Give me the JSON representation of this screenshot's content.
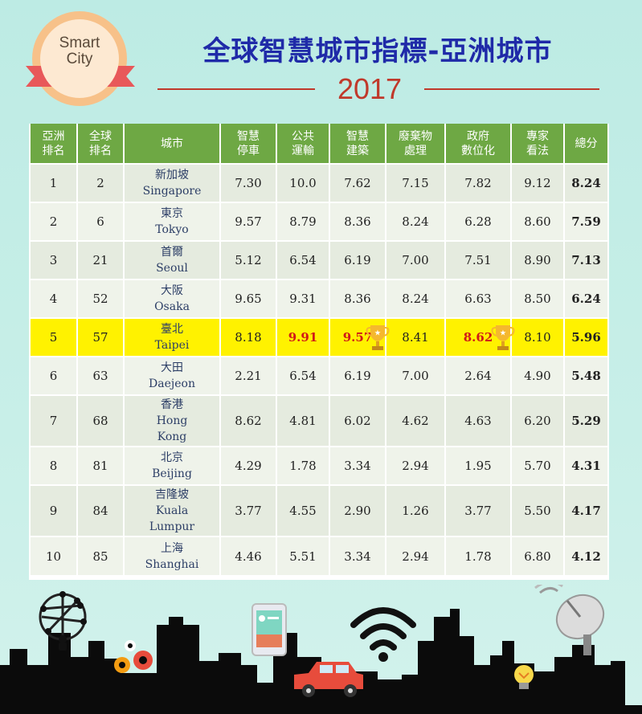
{
  "logo": {
    "line1": "Smart",
    "line2": "City"
  },
  "title": "全球智慧城市指標-亞洲城市",
  "year": "2017",
  "headers": [
    "亞洲\n排名",
    "全球\n排名",
    "城市",
    "智慧\n停車",
    "公共\n運輸",
    "智慧\n建築",
    "廢棄物\n處理",
    "政府\n數位化",
    "專家\n看法",
    "總分"
  ],
  "rows": [
    {
      "asia": "1",
      "global": "2",
      "zh": "新加坡",
      "en": "Singapore",
      "parking": "7.30",
      "transit": "10.0",
      "building": "7.62",
      "waste": "7.15",
      "gov": "7.82",
      "expert": "9.12",
      "total": "8.24"
    },
    {
      "asia": "2",
      "global": "6",
      "zh": "東京",
      "en": "Tokyo",
      "parking": "9.57",
      "transit": "8.79",
      "building": "8.36",
      "waste": "8.24",
      "gov": "6.28",
      "expert": "8.60",
      "total": "7.59"
    },
    {
      "asia": "3",
      "global": "21",
      "zh": "首爾",
      "en": "Seoul",
      "parking": "5.12",
      "transit": "6.54",
      "building": "6.19",
      "waste": "7.00",
      "gov": "7.51",
      "expert": "8.90",
      "total": "7.13"
    },
    {
      "asia": "4",
      "global": "52",
      "zh": "大阪",
      "en": "Osaka",
      "parking": "9.65",
      "transit": "9.31",
      "building": "8.36",
      "waste": "8.24",
      "gov": "6.63",
      "expert": "8.50",
      "total": "6.24"
    },
    {
      "asia": "5",
      "global": "57",
      "zh": "臺北",
      "en": "Taipei",
      "parking": "8.18",
      "transit": "9.91",
      "building": "9.57",
      "waste": "8.41",
      "gov": "8.62",
      "expert": "8.10",
      "total": "5.96"
    },
    {
      "asia": "6",
      "global": "63",
      "zh": "大田",
      "en": "Daejeon",
      "parking": "2.21",
      "transit": "6.54",
      "building": "6.19",
      "waste": "7.00",
      "gov": "2.64",
      "expert": "4.90",
      "total": "5.48"
    },
    {
      "asia": "7",
      "global": "68",
      "zh": "香港",
      "en": "Hong\nKong",
      "parking": "8.62",
      "transit": "4.81",
      "building": "6.02",
      "waste": "4.62",
      "gov": "4.63",
      "expert": "6.20",
      "total": "5.29"
    },
    {
      "asia": "8",
      "global": "81",
      "zh": "北京",
      "en": "Beijing",
      "parking": "4.29",
      "transit": "1.78",
      "building": "3.34",
      "waste": "2.94",
      "gov": "1.95",
      "expert": "5.70",
      "total": "4.31"
    },
    {
      "asia": "9",
      "global": "84",
      "zh": "吉隆坡",
      "en": "Kuala\nLumpur",
      "parking": "3.77",
      "transit": "4.55",
      "building": "2.90",
      "waste": "1.26",
      "gov": "3.77",
      "expert": "5.50",
      "total": "4.17"
    },
    {
      "asia": "10",
      "global": "85",
      "zh": "上海",
      "en": "Shanghai",
      "parking": "4.46",
      "transit": "5.51",
      "building": "3.34",
      "waste": "2.94",
      "gov": "1.78",
      "expert": "6.80",
      "total": "4.12"
    }
  ],
  "highlight_row": 4,
  "colors": {
    "header_green": "#6ea844",
    "title_blue": "#1f2aa8",
    "year_red": "#c0392b",
    "highlight_yellow": "#fff200",
    "emphasis_red": "#d01818"
  },
  "icons": [
    "network-icon",
    "smartphone-icon",
    "wifi-icon",
    "car-icon",
    "gears-icon",
    "satellite-dish-icon",
    "lightbulb-icon",
    "trophy-icon"
  ]
}
